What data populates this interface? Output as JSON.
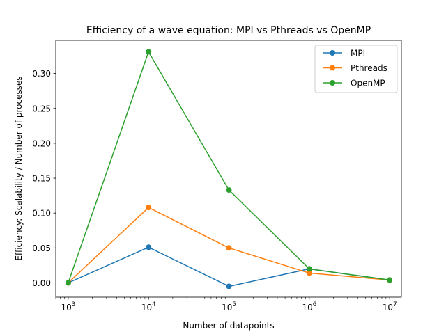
{
  "chart_data": {
    "type": "line",
    "title": "Efficiency of a wave equation: MPI vs Pthreads vs OpenMP",
    "xlabel": "Number of datapoints",
    "ylabel": "Efficiency: Scalability / Number of processes",
    "x_scale": "log",
    "x": [
      1000,
      10000,
      100000,
      1000000,
      10000000
    ],
    "x_tick_labels": [
      {
        "base": "10",
        "exp": "3"
      },
      {
        "base": "10",
        "exp": "4"
      },
      {
        "base": "10",
        "exp": "5"
      },
      {
        "base": "10",
        "exp": "6"
      },
      {
        "base": "10",
        "exp": "7"
      }
    ],
    "y_ticks": [
      0.0,
      0.05,
      0.1,
      0.15,
      0.2,
      0.25,
      0.3
    ],
    "y_tick_labels": [
      "0.00",
      "0.05",
      "0.10",
      "0.15",
      "0.20",
      "0.25",
      "0.30"
    ],
    "xlim": [
      700,
      14000000
    ],
    "ylim": [
      -0.0205,
      0.3475
    ],
    "grid": false,
    "legend_position": "top-right",
    "series": [
      {
        "name": "MPI",
        "color": "#1f77b4",
        "values": [
          0.0,
          0.051,
          -0.005,
          0.02,
          0.004
        ]
      },
      {
        "name": "Pthreads",
        "color": "#ff7f0e",
        "values": [
          0.0,
          0.108,
          0.05,
          0.014,
          0.004
        ]
      },
      {
        "name": "OpenMP",
        "color": "#2ca02c",
        "values": [
          0.0,
          0.331,
          0.133,
          0.02,
          0.004
        ]
      }
    ]
  }
}
